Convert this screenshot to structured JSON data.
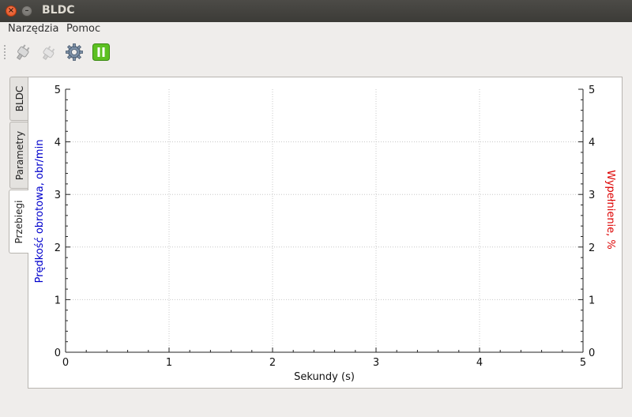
{
  "window": {
    "title": "BLDC"
  },
  "menu": {
    "items": [
      "Narzędzia",
      "Pomoc"
    ]
  },
  "toolbar": {
    "buttons": [
      {
        "name": "connect",
        "icon": "plug-connect-icon"
      },
      {
        "name": "disconnect",
        "icon": "plug-disconnect-icon"
      },
      {
        "name": "settings",
        "icon": "gear-icon"
      },
      {
        "name": "pause",
        "icon": "pause-icon"
      }
    ]
  },
  "tabs": [
    "BLDC",
    "Parametry",
    "Przebiegi"
  ],
  "active_tab": "Przebiegi",
  "chart_data": {
    "type": "line",
    "xlabel": "Sekundy (s)",
    "ylabel_left": "Prędkość obrotowa, obr/min",
    "ylabel_right": "Wypełnienie, %",
    "xlim": [
      0,
      5
    ],
    "ylim_left": [
      0,
      5
    ],
    "ylim_right": [
      0,
      5
    ],
    "x_ticks": [
      "0",
      "1",
      "2",
      "3",
      "4",
      "5"
    ],
    "y_ticks": [
      "0",
      "1",
      "2",
      "3",
      "4",
      "5"
    ],
    "grid": true,
    "series": [],
    "colors": {
      "left_label": "#0000cc",
      "right_label": "#dd0000"
    }
  }
}
